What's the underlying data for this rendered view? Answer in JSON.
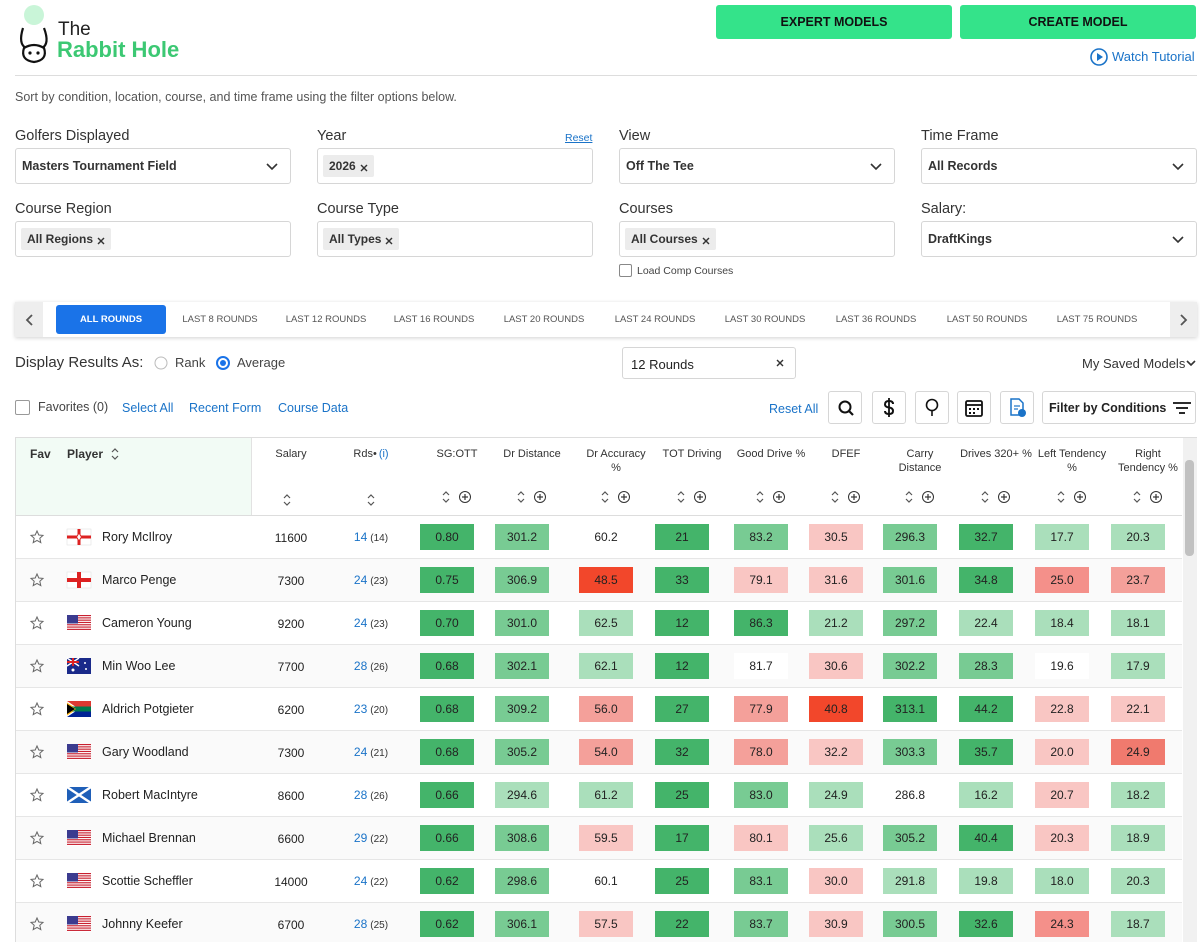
{
  "header": {
    "logo_top": "The",
    "logo_name": "Rabbit Hole",
    "buttons": [
      "EXPERT MODELS",
      "CREATE MODEL"
    ],
    "tutorial": "Watch Tutorial"
  },
  "intro": "Sort by condition, location, course, and time frame using the filter options below.",
  "filters": [
    {
      "label": "Golfers Displayed",
      "value": "Masters Tournament Field"
    },
    {
      "label": "Year",
      "chip": "2026",
      "reset": "Reset"
    },
    {
      "label": "View",
      "value": "Off The Tee"
    },
    {
      "label": "Time Frame",
      "value": "All Records"
    },
    {
      "label": "Course Region",
      "chip": "All Regions"
    },
    {
      "label": "Course Type",
      "chip": "All Types"
    },
    {
      "label": "Courses",
      "chip": "All Courses",
      "checkbox": "Load Comp Courses"
    },
    {
      "label": "Salary:",
      "value": "DraftKings"
    }
  ],
  "tabs": [
    "ALL ROUNDS",
    "LAST 8 ROUNDS",
    "LAST 12 ROUNDS",
    "LAST 16 ROUNDS",
    "LAST 20 ROUNDS",
    "LAST 24 ROUNDS",
    "LAST 30 ROUNDS",
    "LAST 36 ROUNDS",
    "LAST 50 ROUNDS",
    "LAST 75 ROUNDS"
  ],
  "active_tab": 0,
  "display": {
    "label": "Display Results As:",
    "options": [
      "Rank",
      "Average"
    ],
    "selected": 1,
    "search": "12 Rounds",
    "saved": "My Saved Models"
  },
  "toolbar": {
    "favorites": "Favorites (0)",
    "links": [
      "Select All",
      "Recent Form",
      "Course Data"
    ],
    "reset_all": "Reset All",
    "filter": "Filter by Conditions"
  },
  "table": {
    "columns": [
      "Fav",
      "Player",
      "Salary",
      "Rds•",
      "SG:OTT",
      "Dr Distance",
      "Dr Accuracy %",
      "TOT Driving",
      "Good Drive %",
      "DFEF",
      "Carry Distance",
      "Drives 320+ %",
      "Left Tendency %",
      "Right Tendency %"
    ],
    "rds_info": "(i)",
    "rows": [
      {
        "player": "Rory McIlroy",
        "salary": 11600,
        "rds": 14,
        "rds_total": "(14)",
        "stats": [
          "0.80",
          "301.2",
          "60.2",
          "21",
          "83.2",
          "30.5",
          "296.3",
          "32.7",
          "17.7",
          "20.3"
        ],
        "colors": [
          "#44b46a",
          "#78cb93",
          "#ffffff",
          "#44b46a",
          "#78cb93",
          "#f9c6c3",
          "#78cb93",
          "#44b46a",
          "#aadfbb",
          "#aadfbb"
        ]
      },
      {
        "player": "Marco Penge",
        "salary": 7300,
        "rds": 24,
        "rds_total": "(23)",
        "stats": [
          "0.75",
          "306.9",
          "48.5",
          "33",
          "79.1",
          "31.6",
          "301.6",
          "34.8",
          "25.0",
          "23.7"
        ],
        "colors": [
          "#44b46a",
          "#78cb93",
          "#f2472b",
          "#44b46a",
          "#f9c6c3",
          "#f9c6c3",
          "#78cb93",
          "#44b46a",
          "#f4908a",
          "#f4a09a"
        ]
      },
      {
        "player": "Cameron Young",
        "salary": 9200,
        "rds": 24,
        "rds_total": "(23)",
        "stats": [
          "0.70",
          "301.0",
          "62.5",
          "12",
          "86.3",
          "21.2",
          "297.2",
          "22.4",
          "18.4",
          "18.1"
        ],
        "colors": [
          "#44b46a",
          "#78cb93",
          "#aadfbb",
          "#44b46a",
          "#44b46a",
          "#aadfbb",
          "#78cb93",
          "#aadfbb",
          "#aadfbb",
          "#aadfbb"
        ]
      },
      {
        "player": "Min Woo Lee",
        "salary": 7700,
        "rds": 28,
        "rds_total": "(26)",
        "stats": [
          "0.68",
          "302.1",
          "62.1",
          "12",
          "81.7",
          "30.6",
          "302.2",
          "28.3",
          "19.6",
          "17.9"
        ],
        "colors": [
          "#44b46a",
          "#78cb93",
          "#aadfbb",
          "#44b46a",
          "#ffffff",
          "#f9c6c3",
          "#78cb93",
          "#78cb93",
          "#ffffff",
          "#aadfbb"
        ]
      },
      {
        "player": "Aldrich Potgieter",
        "salary": 6200,
        "rds": 23,
        "rds_total": "(20)",
        "stats": [
          "0.68",
          "309.2",
          "56.0",
          "27",
          "77.9",
          "40.8",
          "313.1",
          "44.2",
          "22.8",
          "22.1"
        ],
        "colors": [
          "#44b46a",
          "#78cb93",
          "#f4a09a",
          "#44b46a",
          "#f4a09a",
          "#f2472b",
          "#44b46a",
          "#44b46a",
          "#f9c6c3",
          "#f9c6c3"
        ]
      },
      {
        "player": "Gary Woodland",
        "salary": 7300,
        "rds": 24,
        "rds_total": "(21)",
        "stats": [
          "0.68",
          "305.2",
          "54.0",
          "32",
          "78.0",
          "32.2",
          "303.3",
          "35.7",
          "20.0",
          "24.9"
        ],
        "colors": [
          "#44b46a",
          "#78cb93",
          "#f4a09a",
          "#44b46a",
          "#f4a09a",
          "#f9c6c3",
          "#78cb93",
          "#44b46a",
          "#f9c6c3",
          "#f07a6e"
        ]
      },
      {
        "player": "Robert MacIntyre",
        "salary": 8600,
        "rds": 28,
        "rds_total": "(26)",
        "stats": [
          "0.66",
          "294.6",
          "61.2",
          "25",
          "83.0",
          "24.9",
          "286.8",
          "16.2",
          "20.7",
          "18.2"
        ],
        "colors": [
          "#44b46a",
          "#aadfbb",
          "#aadfbb",
          "#44b46a",
          "#78cb93",
          "#aadfbb",
          "#ffffff",
          "#aadfbb",
          "#f9c6c3",
          "#aadfbb"
        ]
      },
      {
        "player": "Michael Brennan",
        "salary": 6600,
        "rds": 29,
        "rds_total": "(22)",
        "stats": [
          "0.66",
          "308.6",
          "59.5",
          "17",
          "80.1",
          "25.6",
          "305.2",
          "40.4",
          "20.3",
          "18.9"
        ],
        "colors": [
          "#44b46a",
          "#78cb93",
          "#f9c6c3",
          "#44b46a",
          "#f9c6c3",
          "#aadfbb",
          "#78cb93",
          "#44b46a",
          "#f9c6c3",
          "#aadfbb"
        ]
      },
      {
        "player": "Scottie Scheffler",
        "salary": 14000,
        "rds": 24,
        "rds_total": "(22)",
        "stats": [
          "0.62",
          "298.6",
          "60.1",
          "25",
          "83.1",
          "30.0",
          "291.8",
          "19.8",
          "18.0",
          "20.3"
        ],
        "colors": [
          "#44b46a",
          "#78cb93",
          "#ffffff",
          "#44b46a",
          "#78cb93",
          "#f9c6c3",
          "#aadfbb",
          "#aadfbb",
          "#aadfbb",
          "#aadfbb"
        ]
      },
      {
        "player": "Johnny Keefer",
        "salary": 6700,
        "rds": 28,
        "rds_total": "(25)",
        "stats": [
          "0.62",
          "306.1",
          "57.5",
          "22",
          "83.7",
          "30.9",
          "300.5",
          "32.6",
          "24.3",
          "18.7"
        ],
        "colors": [
          "#44b46a",
          "#78cb93",
          "#f9c6c3",
          "#44b46a",
          "#78cb93",
          "#f9c6c3",
          "#78cb93",
          "#44b46a",
          "#f4908a",
          "#aadfbb"
        ]
      }
    ]
  }
}
